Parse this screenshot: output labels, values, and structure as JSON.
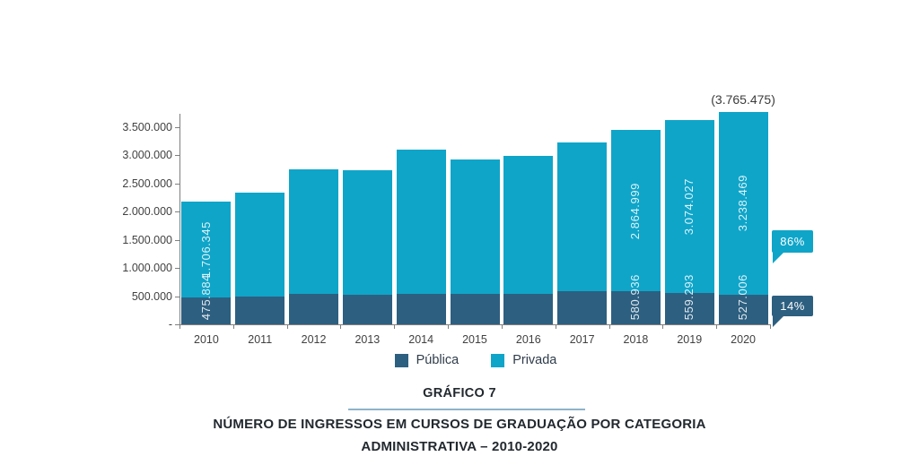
{
  "chart_data": {
    "type": "bar",
    "stacked": true,
    "title": "GRÁFICO 7",
    "subtitle_line1": "NÚMERO DE INGRESSOS EM CURSOS DE GRADUAÇÃO POR CATEGORIA",
    "subtitle_line2": "ADMINISTRATIVA – 2010-2020",
    "categories": [
      "2010",
      "2011",
      "2012",
      "2013",
      "2014",
      "2015",
      "2016",
      "2017",
      "2018",
      "2019",
      "2020"
    ],
    "series": [
      {
        "name": "Pública",
        "color": "#2d5f80",
        "values": [
          475884,
          490000,
          548000,
          532000,
          548000,
          539000,
          547000,
          591000,
          580936,
          559293,
          527006
        ],
        "labels": [
          "475.884",
          null,
          null,
          null,
          null,
          null,
          null,
          null,
          "580.936",
          "559.293",
          "527.006"
        ]
      },
      {
        "name": "Privada",
        "color": "#0fa5c9",
        "values": [
          1706345,
          1856000,
          2199000,
          2211000,
          2562000,
          2381000,
          2439000,
          2636000,
          2864999,
          3074027,
          3238469
        ],
        "labels": [
          "1.706.345",
          null,
          null,
          null,
          null,
          null,
          null,
          null,
          "2.864.999",
          "3.074.027",
          "3.238.469"
        ]
      }
    ],
    "y_axis": {
      "min": 0,
      "max": 3500000,
      "tick_step": 500000,
      "tick_labels": [
        "3.500.000",
        "3.000.000",
        "2.500.000",
        "2.000.000",
        "1.500.000",
        "1.000.000",
        "500.000",
        "-"
      ]
    },
    "annotation": {
      "text": "(3.765.475)",
      "category": "2020"
    },
    "callouts": [
      {
        "text": "86%",
        "series": "Privada",
        "color": "#0fa5c9"
      },
      {
        "text": "14%",
        "series": "Pública",
        "color": "#2d5f80"
      }
    ],
    "legend_position": "bottom",
    "grid": false,
    "colors": {
      "axis": "#7f7f7f",
      "tick_text": "#414141",
      "bar_label_text": "rgba(255,255,255,0.85)",
      "annotation_text": "#3c3c3c",
      "title_text": "#22292f",
      "title_underline": "#8fb4c9",
      "legend_text": "#2f3c4a"
    }
  }
}
